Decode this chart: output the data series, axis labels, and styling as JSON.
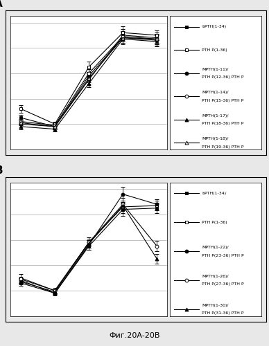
{
  "x_values": [
    0,
    1,
    2,
    3,
    4
  ],
  "panel_A": {
    "series": [
      {
        "label": "bPTH(1-34)",
        "marker": "s",
        "marker_fill": "black",
        "y": [
          0.25,
          0.18,
          0.55,
          0.9,
          0.88
        ],
        "yerr": [
          0.02,
          0.02,
          0.03,
          0.05,
          0.04
        ]
      },
      {
        "label": "PTH P(1-36)",
        "marker": "s",
        "marker_fill": "white",
        "y": [
          0.32,
          0.2,
          0.65,
          0.92,
          0.9
        ],
        "yerr": [
          0.03,
          0.02,
          0.04,
          0.05,
          0.04
        ]
      },
      {
        "label": "MPTH(1-11)/\nPTH P(12-36) PTH P",
        "marker": "o",
        "marker_fill": "black",
        "y": [
          0.2,
          0.18,
          0.58,
          0.88,
          0.86
        ],
        "yerr": [
          0.02,
          0.02,
          0.03,
          0.04,
          0.04
        ]
      },
      {
        "label": "MPTH(1-14)/\nPTH P(15-36) PTH P",
        "marker": "o",
        "marker_fill": "white",
        "y": [
          0.22,
          0.19,
          0.6,
          0.89,
          0.87
        ],
        "yerr": [
          0.02,
          0.02,
          0.03,
          0.04,
          0.04
        ]
      },
      {
        "label": "MPTH(1-17)/\nPTH P(18-36) PTH P",
        "marker": "^",
        "marker_fill": "black",
        "y": [
          0.18,
          0.16,
          0.52,
          0.87,
          0.85
        ],
        "yerr": [
          0.02,
          0.02,
          0.03,
          0.04,
          0.04
        ]
      },
      {
        "label": "MPTH(1-18)/\nPTH P(19-36) PTH P",
        "marker": "^",
        "marker_fill": "white",
        "y": [
          0.21,
          0.18,
          0.56,
          0.88,
          0.87
        ],
        "yerr": [
          0.02,
          0.02,
          0.03,
          0.04,
          0.04
        ]
      }
    ]
  },
  "panel_B": {
    "series": [
      {
        "label": "bPTH(1-34)",
        "marker": "s",
        "marker_fill": "black",
        "y": [
          0.28,
          0.18,
          0.55,
          0.84,
          0.85
        ],
        "yerr": [
          0.02,
          0.02,
          0.03,
          0.05,
          0.04
        ]
      },
      {
        "label": "PTH P(1-36)",
        "marker": "s",
        "marker_fill": "white",
        "y": [
          0.3,
          0.2,
          0.58,
          0.86,
          0.87
        ],
        "yerr": [
          0.03,
          0.02,
          0.04,
          0.05,
          0.04
        ]
      },
      {
        "label": "MPTH(1-22)/\nPTH P(23-36) PTH P",
        "marker": "o",
        "marker_fill": "black",
        "y": [
          0.26,
          0.18,
          0.56,
          0.96,
          0.88
        ],
        "yerr": [
          0.02,
          0.02,
          0.04,
          0.06,
          0.04
        ]
      },
      {
        "label": "MPTH(1-26)/\nPTH P(27-36) PTH P",
        "marker": "o",
        "marker_fill": "white",
        "y": [
          0.29,
          0.2,
          0.58,
          0.88,
          0.55
        ],
        "yerr": [
          0.02,
          0.02,
          0.03,
          0.05,
          0.04
        ]
      },
      {
        "label": "MPTH(1-30)/\nPTH P(31-36) PTH P",
        "marker": "^",
        "marker_fill": "black",
        "y": [
          0.27,
          0.19,
          0.57,
          0.87,
          0.45
        ],
        "yerr": [
          0.02,
          0.02,
          0.03,
          0.04,
          0.04
        ]
      }
    ]
  },
  "ylim": [
    0.0,
    1.05
  ],
  "xlim": [
    -0.3,
    4.3
  ],
  "fig_bg": "#e8e8e8",
  "outer_box_bg": "#e8e8e8",
  "plot_bg": "#ffffff",
  "grid_color": "#aaaaaa",
  "fig_caption": "Фиг.20A-20B",
  "yticks": [
    0.2,
    0.4,
    0.6,
    0.8,
    1.0
  ]
}
